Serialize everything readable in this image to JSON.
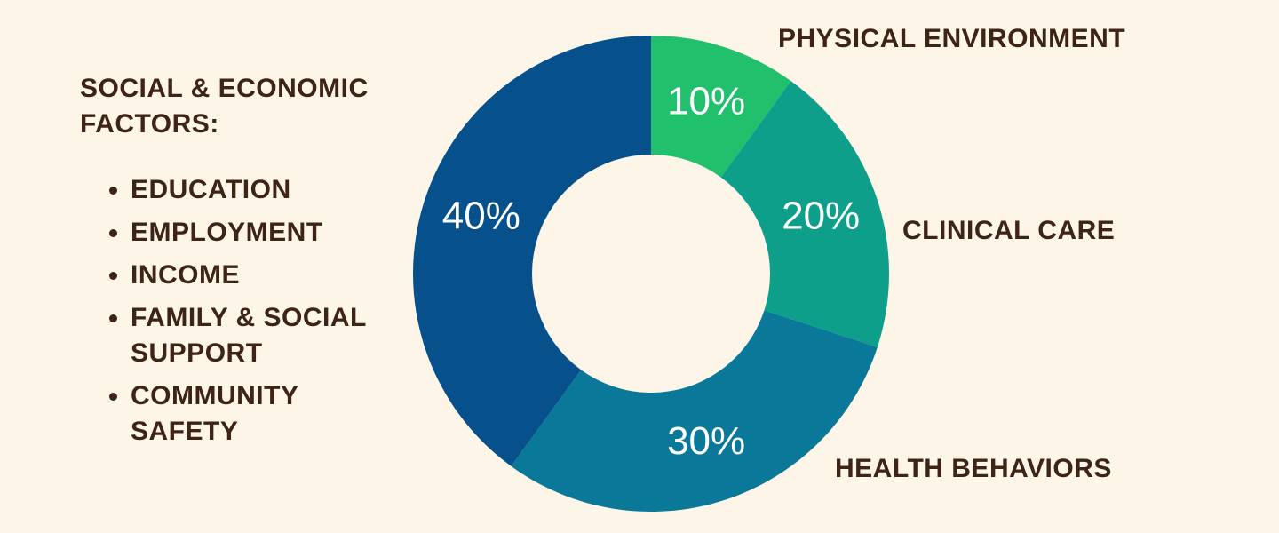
{
  "chart_data": {
    "type": "donut",
    "categories": [
      "PHYSICAL ENVIRONMENT",
      "CLINICAL CARE",
      "HEALTH BEHAVIORS",
      "SOCIAL & ECONOMIC FACTORS:"
    ],
    "values": [
      10,
      20,
      30,
      40
    ],
    "value_labels": [
      "10%",
      "20%",
      "30%",
      "40%"
    ],
    "colors": [
      "#20c06c",
      "#0e9f8a",
      "#0a7898",
      "#06508c"
    ],
    "details": [
      "EDUCATION",
      "EMPLOYMENT",
      "INCOME",
      "FAMILY & SOCIAL SUPPORT",
      "COMMUNITY SAFETY"
    ]
  }
}
